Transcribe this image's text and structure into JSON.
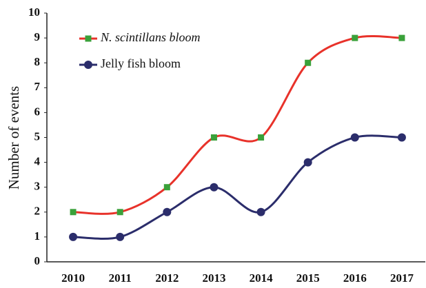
{
  "chart_data": {
    "type": "line",
    "ylabel": "Number of events",
    "categories": [
      "2010",
      "2011",
      "2012",
      "2013",
      "2014",
      "2015",
      "2016",
      "2017"
    ],
    "series": [
      {
        "name": "N. scintillans bloom",
        "color": "#e8322a",
        "marker": "square",
        "marker_color": "#3aa13a",
        "values": [
          2,
          2,
          3,
          5,
          5,
          8,
          9,
          9
        ]
      },
      {
        "name": "Jelly fish bloom",
        "color": "#2b2d6b",
        "marker": "circle",
        "marker_color": "#2b2d6b",
        "values": [
          1,
          1,
          2,
          3,
          2,
          4,
          5,
          5
        ]
      }
    ],
    "ylim": [
      0,
      10
    ],
    "yticks": [
      0,
      1,
      2,
      3,
      4,
      5,
      6,
      7,
      8,
      9,
      10
    ],
    "grid": false,
    "legend": "upper left"
  }
}
